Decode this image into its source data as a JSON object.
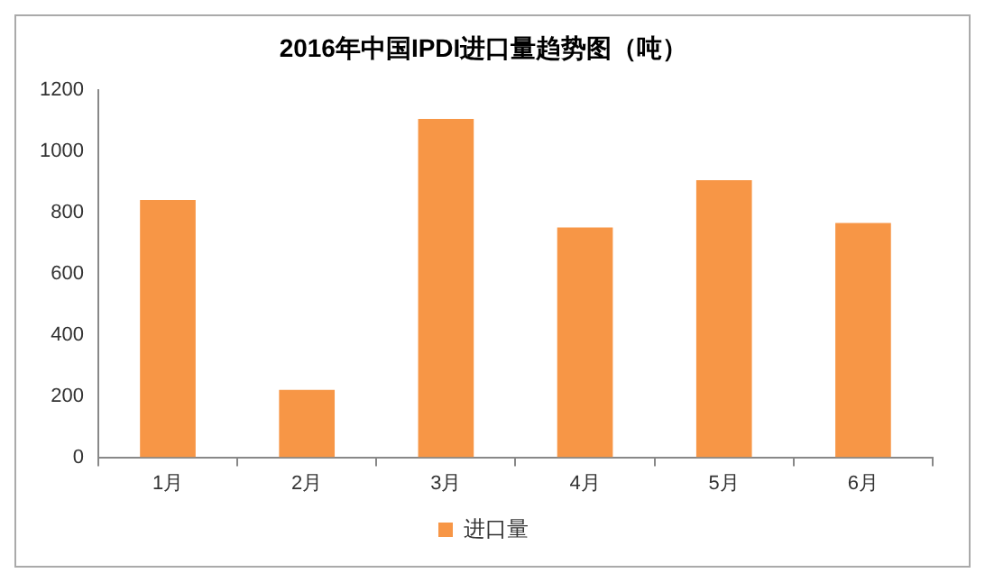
{
  "chart_data": {
    "type": "bar",
    "title": "2016年中国IPDI进口量趋势图（吨）",
    "categories": [
      "1月",
      "2月",
      "3月",
      "4月",
      "5月",
      "6月"
    ],
    "series": [
      {
        "name": "进口量",
        "color": "#f79646",
        "values": [
          840,
          220,
          1105,
          750,
          905,
          765
        ]
      }
    ],
    "ylim": [
      0,
      1200
    ],
    "yticks": [
      0,
      200,
      400,
      600,
      800,
      1000,
      1200
    ],
    "grid": false,
    "legend": "bottom"
  }
}
